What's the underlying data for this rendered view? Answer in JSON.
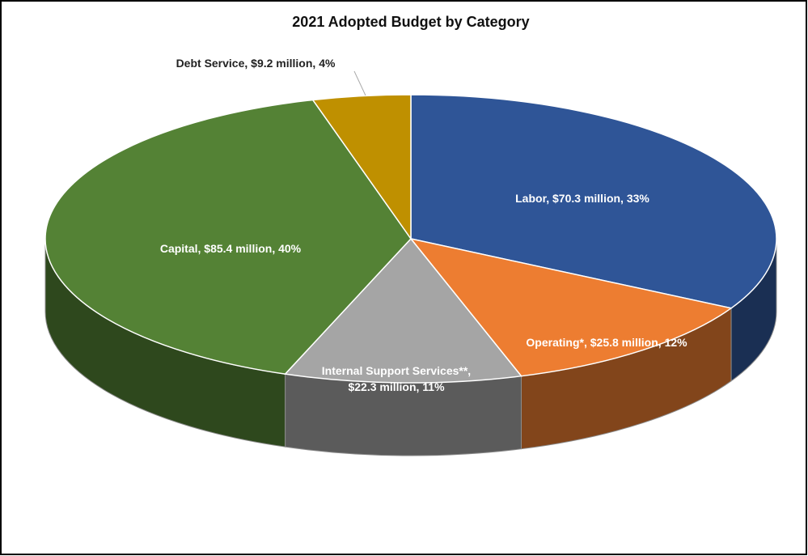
{
  "chart_data": {
    "type": "pie3d",
    "title": "2021 Adopted Budget by Category",
    "values": [
      70.3,
      25.8,
      22.3,
      85.4,
      9.2
    ],
    "value_labels": [
      "Labor,  $70.3 million, 33%",
      "Operating*,  $25.8 million, 12%",
      "Internal Support Services**,  $22.3 million, 11%",
      "Capital,  $85.4 million, 40%",
      "Debt Service,  $9.2 million, 4%"
    ],
    "colors": [
      "#2f5597",
      "#ed7d31",
      "#a5a5a5",
      "#548235",
      "#bf9000"
    ]
  }
}
